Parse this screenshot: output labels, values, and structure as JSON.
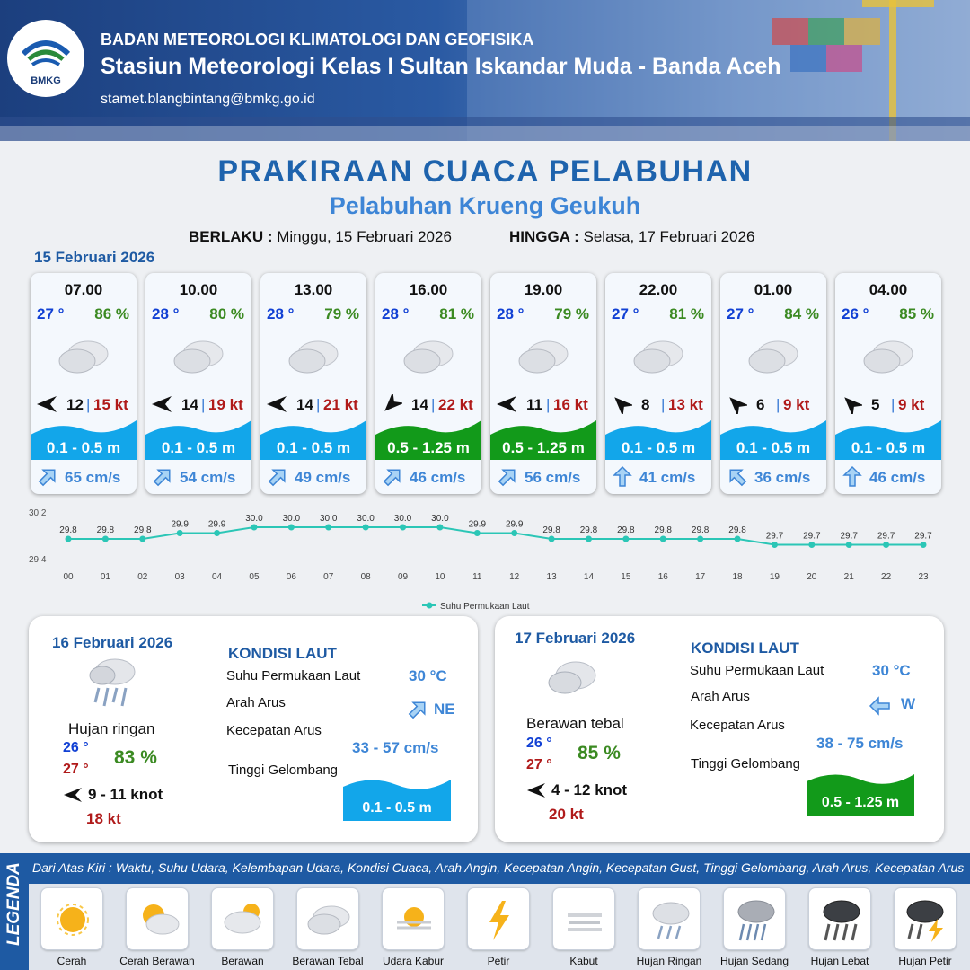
{
  "header": {
    "agency": "BADAN METEOROLOGI KLIMATOLOGI DAN GEOFISIKA",
    "station": "Stasiun Meteorologi Kelas I Sultan Iskandar Muda - Banda Aceh",
    "email": "stamet.blangbintang@bmkg.go.id",
    "logo_text": "BMKG"
  },
  "title": "PRAKIRAAN CUACA PELABUHAN",
  "subtitle": "Pelabuhan Krueng Geukuh",
  "validity": {
    "from_label": "BERLAKU :",
    "from_value": "Minggu, 15 Februari 2026",
    "to_label": "HINGGA :",
    "to_value": "Selasa, 17 Februari 2026"
  },
  "day1_label": "15 Februari 2026",
  "forecasts": [
    {
      "time": "07.00",
      "temp": "27 °",
      "hum": "86 %",
      "wind_speed": "12",
      "sep": "|",
      "gust": "15 kt",
      "wind_dir": "E",
      "wave": "0.1 - 0.5 m",
      "wave_class": "low",
      "current_dir": "NE",
      "current": "65 cm/s"
    },
    {
      "time": "10.00",
      "temp": "28 °",
      "hum": "80 %",
      "wind_speed": "14",
      "sep": "|",
      "gust": "19 kt",
      "wind_dir": "E",
      "wave": "0.1 - 0.5 m",
      "wave_class": "low",
      "current_dir": "NE",
      "current": "54 cm/s"
    },
    {
      "time": "13.00",
      "temp": "28 °",
      "hum": "79 %",
      "wind_speed": "14",
      "sep": "|",
      "gust": "21 kt",
      "wind_dir": "E",
      "wave": "0.1 - 0.5 m",
      "wave_class": "low",
      "current_dir": "NE",
      "current": "49 cm/s"
    },
    {
      "time": "16.00",
      "temp": "28 °",
      "hum": "81 %",
      "wind_speed": "14",
      "sep": "|",
      "gust": "22 kt",
      "wind_dir": "NE",
      "wave": "0.5 - 1.25 m",
      "wave_class": "mid",
      "current_dir": "NE",
      "current": "46 cm/s"
    },
    {
      "time": "19.00",
      "temp": "28 °",
      "hum": "79 %",
      "wind_speed": "11",
      "sep": "|",
      "gust": "16 kt",
      "wind_dir": "E",
      "wave": "0.5 - 1.25 m",
      "wave_class": "mid",
      "current_dir": "NE",
      "current": "56 cm/s"
    },
    {
      "time": "22.00",
      "temp": "27 °",
      "hum": "81 %",
      "wind_speed": "8",
      "sep": "|",
      "gust": "13 kt",
      "wind_dir": "SE",
      "wave": "0.1 - 0.5 m",
      "wave_class": "low",
      "current_dir": "N",
      "current": "41 cm/s"
    },
    {
      "time": "01.00",
      "temp": "27 °",
      "hum": "84 %",
      "wind_speed": "6",
      "sep": "|",
      "gust": "9 kt",
      "wind_dir": "SE",
      "wave": "0.1 - 0.5 m",
      "wave_class": "low",
      "current_dir": "NW",
      "current": "36 cm/s"
    },
    {
      "time": "04.00",
      "temp": "26 °",
      "hum": "85 %",
      "wind_speed": "5",
      "sep": "|",
      "gust": "9 kt",
      "wind_dir": "SE",
      "wave": "0.1 - 0.5 m",
      "wave_class": "low",
      "current_dir": "N",
      "current": "46 cm/s"
    }
  ],
  "colors": {
    "wave_low": "#12a6ea",
    "wave_mid": "#129a1a",
    "title": "#1e63ad",
    "series": "#2bc6b6"
  },
  "chart_data": {
    "type": "line",
    "categories": [
      "00",
      "01",
      "02",
      "03",
      "04",
      "05",
      "06",
      "07",
      "08",
      "09",
      "10",
      "11",
      "12",
      "13",
      "14",
      "15",
      "16",
      "17",
      "18",
      "19",
      "20",
      "21",
      "22",
      "23"
    ],
    "series": [
      {
        "name": "Suhu Permukaan Laut",
        "values": [
          29.8,
          29.8,
          29.8,
          29.9,
          29.9,
          30.0,
          30.0,
          30.0,
          30.0,
          30.0,
          30.0,
          29.9,
          29.9,
          29.8,
          29.8,
          29.8,
          29.8,
          29.8,
          29.8,
          29.7,
          29.7,
          29.7,
          29.7,
          29.7
        ]
      }
    ],
    "y_ticks": [
      "30.2",
      "29.4"
    ],
    "ylim": [
      29.4,
      30.2
    ],
    "legend_position": "bottom-center",
    "grid": false
  },
  "day2": {
    "date": "16 Februari 2026",
    "condition": "Hujan ringan",
    "icon": "light-rain-icon",
    "tmin": "26 °",
    "tmax": "27 °",
    "hum": "83 %",
    "wind": "9  - 11 knot",
    "wind_dir": "E",
    "gust": "18 kt",
    "sea_title": "KONDISI LAUT",
    "sst_label": "Suhu Permukaan Laut",
    "sst": "30 °C",
    "current_dir_label": "Arah Arus",
    "current_dir": "NE",
    "current_speed_label": "Kecepatan Arus",
    "current_speed": "33  - 57 cm/s",
    "wave_label": "Tinggi Gelombang",
    "wave": "0.1 - 0.5 m",
    "wave_class": "low"
  },
  "day3": {
    "date": "17 Februari 2026",
    "condition": "Berawan tebal",
    "icon": "overcast-icon",
    "tmin": "26 °",
    "tmax": "27 °",
    "hum": "85 %",
    "wind": "4  - 12 knot",
    "wind_dir": "E",
    "gust": "20 kt",
    "sea_title": "KONDISI LAUT",
    "sst_label": "Suhu Permukaan Laut",
    "sst": "30 °C",
    "current_dir_label": "Arah Arus",
    "current_dir": "W",
    "current_speed_label": "Kecepatan Arus",
    "current_speed": "38  - 75 cm/s",
    "wave_label": "Tinggi Gelombang",
    "wave": "0.5 - 1.25 m",
    "wave_class": "mid"
  },
  "legend": {
    "side_label": "LEGENDA",
    "description": "Dari Atas Kiri : Waktu, Suhu Udara, Kelembapan Udara, Kondisi Cuaca, Arah Angin, Kecepatan Angin, Kecepatan Gust, Tinggi Gelombang, Arah Arus, Kecepatan Arus",
    "items": [
      {
        "label": "Cerah",
        "icon": "sunny-icon"
      },
      {
        "label": "Cerah Berawan",
        "icon": "partly-cloudy-icon"
      },
      {
        "label": "Berawan",
        "icon": "cloudy-icon"
      },
      {
        "label": "Berawan Tebal",
        "icon": "overcast-icon"
      },
      {
        "label": "Udara Kabur",
        "icon": "haze-icon"
      },
      {
        "label": "Petir",
        "icon": "lightning-icon"
      },
      {
        "label": "Kabut",
        "icon": "fog-icon"
      },
      {
        "label": "Hujan Ringan",
        "icon": "light-rain-icon"
      },
      {
        "label": "Hujan Sedang",
        "icon": "moderate-rain-icon"
      },
      {
        "label": "Hujan Lebat",
        "icon": "heavy-rain-icon"
      },
      {
        "label": "Hujan Petir",
        "icon": "thunderstorm-icon"
      }
    ]
  }
}
